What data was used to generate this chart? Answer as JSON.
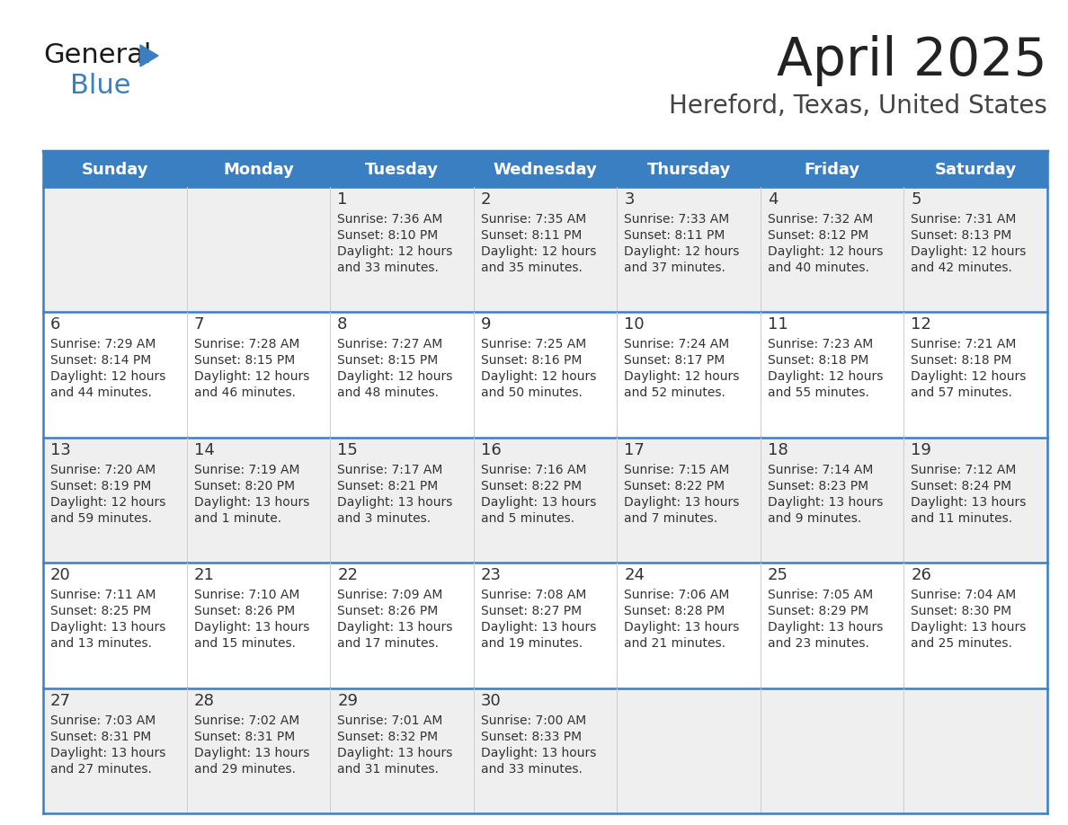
{
  "title": "April 2025",
  "subtitle": "Hereford, Texas, United States",
  "days_of_week": [
    "Sunday",
    "Monday",
    "Tuesday",
    "Wednesday",
    "Thursday",
    "Friday",
    "Saturday"
  ],
  "header_bg": "#3A7FC1",
  "header_text": "#FFFFFF",
  "row_bg_odd": "#EFEFEF",
  "row_bg_even": "#FFFFFF",
  "cell_text_color": "#333333",
  "day_num_color": "#333333",
  "divider_color": "#3A7FC1",
  "weeks": [
    [
      {
        "day": "",
        "sunrise": "",
        "sunset": "",
        "daylight_line1": "",
        "daylight_line2": ""
      },
      {
        "day": "",
        "sunrise": "",
        "sunset": "",
        "daylight_line1": "",
        "daylight_line2": ""
      },
      {
        "day": "1",
        "sunrise": "7:36 AM",
        "sunset": "8:10 PM",
        "daylight_line1": "Daylight: 12 hours",
        "daylight_line2": "and 33 minutes."
      },
      {
        "day": "2",
        "sunrise": "7:35 AM",
        "sunset": "8:11 PM",
        "daylight_line1": "Daylight: 12 hours",
        "daylight_line2": "and 35 minutes."
      },
      {
        "day": "3",
        "sunrise": "7:33 AM",
        "sunset": "8:11 PM",
        "daylight_line1": "Daylight: 12 hours",
        "daylight_line2": "and 37 minutes."
      },
      {
        "day": "4",
        "sunrise": "7:32 AM",
        "sunset": "8:12 PM",
        "daylight_line1": "Daylight: 12 hours",
        "daylight_line2": "and 40 minutes."
      },
      {
        "day": "5",
        "sunrise": "7:31 AM",
        "sunset": "8:13 PM",
        "daylight_line1": "Daylight: 12 hours",
        "daylight_line2": "and 42 minutes."
      }
    ],
    [
      {
        "day": "6",
        "sunrise": "7:29 AM",
        "sunset": "8:14 PM",
        "daylight_line1": "Daylight: 12 hours",
        "daylight_line2": "and 44 minutes."
      },
      {
        "day": "7",
        "sunrise": "7:28 AM",
        "sunset": "8:15 PM",
        "daylight_line1": "Daylight: 12 hours",
        "daylight_line2": "and 46 minutes."
      },
      {
        "day": "8",
        "sunrise": "7:27 AM",
        "sunset": "8:15 PM",
        "daylight_line1": "Daylight: 12 hours",
        "daylight_line2": "and 48 minutes."
      },
      {
        "day": "9",
        "sunrise": "7:25 AM",
        "sunset": "8:16 PM",
        "daylight_line1": "Daylight: 12 hours",
        "daylight_line2": "and 50 minutes."
      },
      {
        "day": "10",
        "sunrise": "7:24 AM",
        "sunset": "8:17 PM",
        "daylight_line1": "Daylight: 12 hours",
        "daylight_line2": "and 52 minutes."
      },
      {
        "day": "11",
        "sunrise": "7:23 AM",
        "sunset": "8:18 PM",
        "daylight_line1": "Daylight: 12 hours",
        "daylight_line2": "and 55 minutes."
      },
      {
        "day": "12",
        "sunrise": "7:21 AM",
        "sunset": "8:18 PM",
        "daylight_line1": "Daylight: 12 hours",
        "daylight_line2": "and 57 minutes."
      }
    ],
    [
      {
        "day": "13",
        "sunrise": "7:20 AM",
        "sunset": "8:19 PM",
        "daylight_line1": "Daylight: 12 hours",
        "daylight_line2": "and 59 minutes."
      },
      {
        "day": "14",
        "sunrise": "7:19 AM",
        "sunset": "8:20 PM",
        "daylight_line1": "Daylight: 13 hours",
        "daylight_line2": "and 1 minute."
      },
      {
        "day": "15",
        "sunrise": "7:17 AM",
        "sunset": "8:21 PM",
        "daylight_line1": "Daylight: 13 hours",
        "daylight_line2": "and 3 minutes."
      },
      {
        "day": "16",
        "sunrise": "7:16 AM",
        "sunset": "8:22 PM",
        "daylight_line1": "Daylight: 13 hours",
        "daylight_line2": "and 5 minutes."
      },
      {
        "day": "17",
        "sunrise": "7:15 AM",
        "sunset": "8:22 PM",
        "daylight_line1": "Daylight: 13 hours",
        "daylight_line2": "and 7 minutes."
      },
      {
        "day": "18",
        "sunrise": "7:14 AM",
        "sunset": "8:23 PM",
        "daylight_line1": "Daylight: 13 hours",
        "daylight_line2": "and 9 minutes."
      },
      {
        "day": "19",
        "sunrise": "7:12 AM",
        "sunset": "8:24 PM",
        "daylight_line1": "Daylight: 13 hours",
        "daylight_line2": "and 11 minutes."
      }
    ],
    [
      {
        "day": "20",
        "sunrise": "7:11 AM",
        "sunset": "8:25 PM",
        "daylight_line1": "Daylight: 13 hours",
        "daylight_line2": "and 13 minutes."
      },
      {
        "day": "21",
        "sunrise": "7:10 AM",
        "sunset": "8:26 PM",
        "daylight_line1": "Daylight: 13 hours",
        "daylight_line2": "and 15 minutes."
      },
      {
        "day": "22",
        "sunrise": "7:09 AM",
        "sunset": "8:26 PM",
        "daylight_line1": "Daylight: 13 hours",
        "daylight_line2": "and 17 minutes."
      },
      {
        "day": "23",
        "sunrise": "7:08 AM",
        "sunset": "8:27 PM",
        "daylight_line1": "Daylight: 13 hours",
        "daylight_line2": "and 19 minutes."
      },
      {
        "day": "24",
        "sunrise": "7:06 AM",
        "sunset": "8:28 PM",
        "daylight_line1": "Daylight: 13 hours",
        "daylight_line2": "and 21 minutes."
      },
      {
        "day": "25",
        "sunrise": "7:05 AM",
        "sunset": "8:29 PM",
        "daylight_line1": "Daylight: 13 hours",
        "daylight_line2": "and 23 minutes."
      },
      {
        "day": "26",
        "sunrise": "7:04 AM",
        "sunset": "8:30 PM",
        "daylight_line1": "Daylight: 13 hours",
        "daylight_line2": "and 25 minutes."
      }
    ],
    [
      {
        "day": "27",
        "sunrise": "7:03 AM",
        "sunset": "8:31 PM",
        "daylight_line1": "Daylight: 13 hours",
        "daylight_line2": "and 27 minutes."
      },
      {
        "day": "28",
        "sunrise": "7:02 AM",
        "sunset": "8:31 PM",
        "daylight_line1": "Daylight: 13 hours",
        "daylight_line2": "and 29 minutes."
      },
      {
        "day": "29",
        "sunrise": "7:01 AM",
        "sunset": "8:32 PM",
        "daylight_line1": "Daylight: 13 hours",
        "daylight_line2": "and 31 minutes."
      },
      {
        "day": "30",
        "sunrise": "7:00 AM",
        "sunset": "8:33 PM",
        "daylight_line1": "Daylight: 13 hours",
        "daylight_line2": "and 33 minutes."
      },
      {
        "day": "",
        "sunrise": "",
        "sunset": "",
        "daylight_line1": "",
        "daylight_line2": ""
      },
      {
        "day": "",
        "sunrise": "",
        "sunset": "",
        "daylight_line1": "",
        "daylight_line2": ""
      },
      {
        "day": "",
        "sunrise": "",
        "sunset": "",
        "daylight_line1": "",
        "daylight_line2": ""
      }
    ]
  ],
  "logo_color_general": "#1a1a1a",
  "logo_color_blue": "#3A7FC1",
  "title_color": "#222222",
  "subtitle_color": "#444444",
  "title_fontsize": 42,
  "subtitle_fontsize": 20,
  "header_fontsize": 13,
  "cell_day_fontsize": 13,
  "cell_text_fontsize": 10
}
